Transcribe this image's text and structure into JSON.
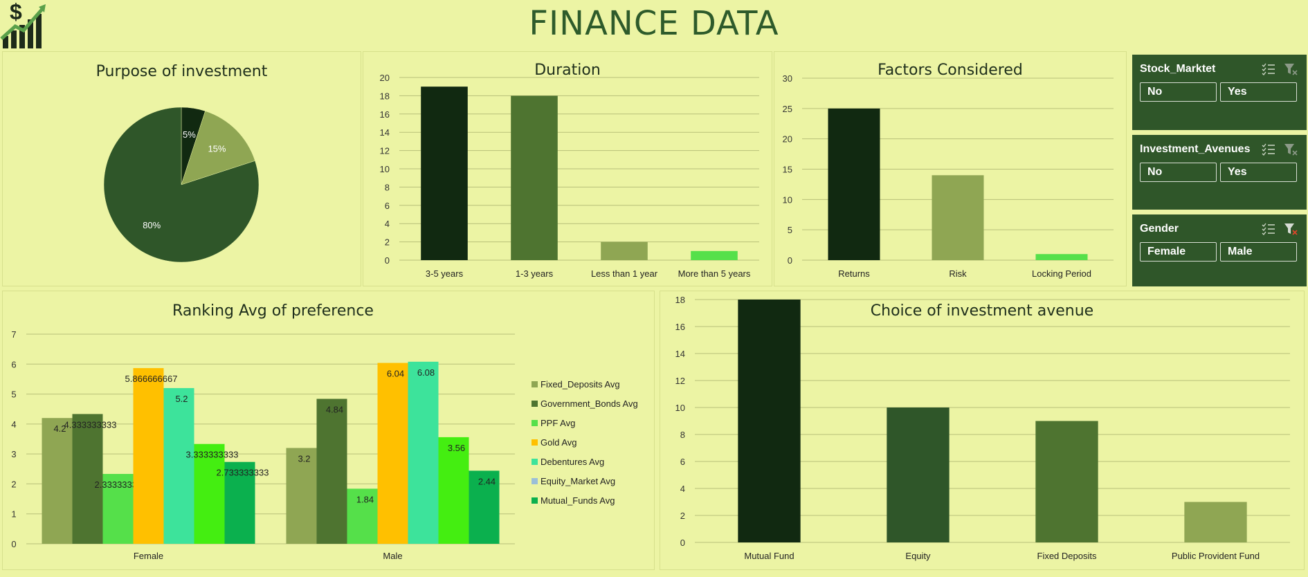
{
  "header": {
    "title": "FINANCE DATA",
    "logo": "dollar-growth-chart-icon"
  },
  "charts": {
    "purpose": {
      "type": "pie",
      "title": "Purpose of investment",
      "slices": [
        {
          "label": "5%",
          "value": 5,
          "color": "#112911"
        },
        {
          "label": "15%",
          "value": 15,
          "color": "#8fa653"
        },
        {
          "label": "80%",
          "value": 80,
          "color": "#2f5629"
        }
      ]
    },
    "duration": {
      "type": "bar",
      "title": "Duration",
      "categories": [
        "3-5 years",
        "1-3 years",
        "Less than 1 year",
        "More than 5 years"
      ],
      "values": [
        19,
        18,
        2,
        1
      ],
      "colors": [
        "#112911",
        "#4e7430",
        "#8fa653",
        "#55e04a"
      ],
      "ylim": [
        0,
        20
      ],
      "yticks": [
        "0",
        "2",
        "4",
        "6",
        "8",
        "10",
        "12",
        "14",
        "16",
        "18",
        "20"
      ]
    },
    "factors": {
      "type": "bar",
      "title": "Factors Considered",
      "categories": [
        "Returns",
        "Risk",
        "Locking Period"
      ],
      "values": [
        25,
        14,
        1
      ],
      "colors": [
        "#112911",
        "#8fa653",
        "#55e04a"
      ],
      "ylim": [
        0,
        30
      ],
      "yticks": [
        "0",
        "5",
        "10",
        "15",
        "20",
        "25",
        "30"
      ]
    },
    "ranking": {
      "type": "bar",
      "title": "Ranking Avg of preference",
      "categories": [
        "Female",
        "Male"
      ],
      "ylim": [
        0,
        7
      ],
      "yticks": [
        "0",
        "1",
        "2",
        "3",
        "4",
        "5",
        "6",
        "7"
      ],
      "series": [
        {
          "name": "Fixed_Deposits Avg",
          "color": "#8fa653",
          "values": [
            4.2,
            3.2
          ],
          "labels": [
            "4.2",
            "3.2"
          ]
        },
        {
          "name": "Government_Bonds Avg",
          "color": "#4e7430",
          "values": [
            4.333333333,
            4.84
          ],
          "labels": [
            "4.333333333",
            "4.84"
          ]
        },
        {
          "name": "PPF Avg",
          "color": "#55e04a",
          "values": [
            2.333333333,
            1.84
          ],
          "labels": [
            "2.333333333",
            "1.84"
          ]
        },
        {
          "name": "Gold Avg",
          "color": "#ffc000",
          "values": [
            5.866666667,
            6.04
          ],
          "labels": [
            "5.866666667",
            "6.04"
          ]
        },
        {
          "name": "Debentures Avg",
          "color": "#3de39b",
          "values": [
            5.2,
            6.08
          ],
          "labels": [
            "5.2",
            "6.08"
          ]
        },
        {
          "name": "Equity_Market Avg",
          "color": "#9bbfd8",
          "values": [
            3.333333333,
            3.56
          ],
          "labels": [
            "3.333333333",
            "3.56"
          ],
          "bar_color": "#44ee11"
        },
        {
          "name": "Mutual_Funds Avg",
          "color": "#0bb04e",
          "values": [
            2.733333333,
            2.44
          ],
          "labels": [
            "2.733333333",
            "2.44"
          ]
        }
      ]
    },
    "choice": {
      "type": "bar",
      "title": "Choice of investment avenue",
      "categories": [
        "Mutual Fund",
        "Equity",
        "Fixed Deposits",
        "Public Provident Fund"
      ],
      "values": [
        18,
        10,
        9,
        3
      ],
      "colors": [
        "#112911",
        "#2f5629",
        "#4e7430",
        "#8fa653"
      ],
      "ylim": [
        0,
        20
      ],
      "yticks": [
        "0",
        "2",
        "4",
        "6",
        "8",
        "10",
        "12",
        "14",
        "16",
        "18",
        "20"
      ]
    }
  },
  "slicers": [
    {
      "title": "Stock_Marktet",
      "options": [
        "No",
        "Yes"
      ],
      "icons": [
        "multi-select-icon",
        "clear-filter-icon"
      ]
    },
    {
      "title": "Investment_Avenues",
      "options": [
        "No",
        "Yes"
      ],
      "icons": [
        "multi-select-icon",
        "clear-filter-icon"
      ]
    },
    {
      "title": "Gender",
      "options": [
        "Female",
        "Male"
      ],
      "icons": [
        "multi-select-icon",
        "clear-filter-active-icon"
      ]
    }
  ]
}
